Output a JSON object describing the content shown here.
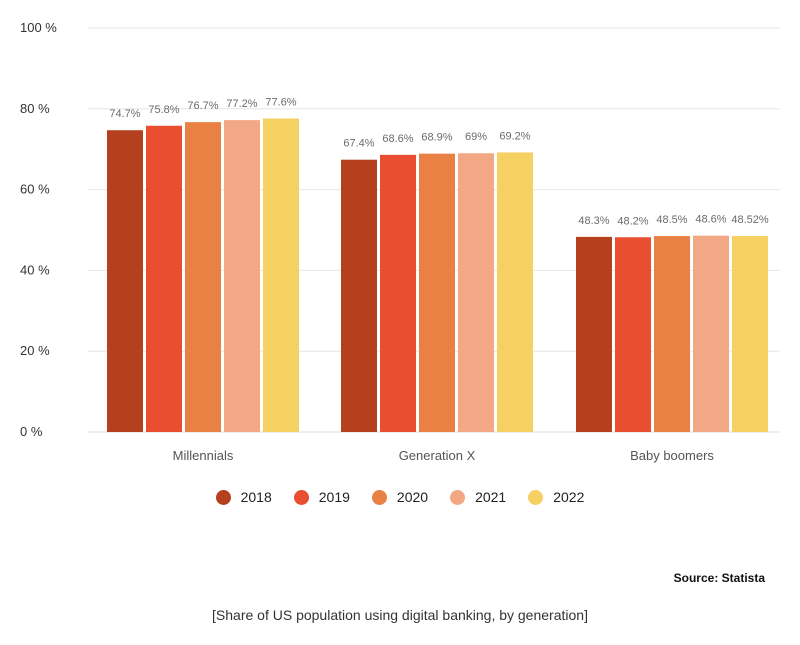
{
  "chart_data": {
    "type": "bar",
    "title": "Share of US population using digital banking, by generation",
    "xlabel": "",
    "ylabel": "",
    "ylim": [
      0,
      100
    ],
    "yticks": [
      0,
      20,
      40,
      60,
      80,
      100
    ],
    "ytick_labels": [
      "0 %",
      "20 %",
      "40 %",
      "60 %",
      "80 %",
      "100 %"
    ],
    "grid": true,
    "legend_position": "bottom-center",
    "categories": [
      "Millennials",
      "Generation X",
      "Baby boomers"
    ],
    "series": [
      {
        "name": "2018",
        "color": "#b5401e",
        "values": [
          74.7,
          67.4,
          48.3
        ],
        "labels": [
          "74.7%",
          "67.4%",
          "48.3%"
        ]
      },
      {
        "name": "2019",
        "color": "#e84e2f",
        "values": [
          75.8,
          68.6,
          48.2
        ],
        "labels": [
          "75.8%",
          "68.6%",
          "48.2%"
        ]
      },
      {
        "name": "2020",
        "color": "#ea8144",
        "values": [
          76.7,
          68.9,
          48.5
        ],
        "labels": [
          "76.7%",
          "68.9%",
          "48.5%"
        ]
      },
      {
        "name": "2021",
        "color": "#f2a885",
        "values": [
          77.2,
          69,
          48.6
        ],
        "labels": [
          "77.2%",
          "69%",
          "48.6%"
        ]
      },
      {
        "name": "2022",
        "color": "#f5d063",
        "values": [
          77.6,
          69.2,
          48.52
        ],
        "labels": [
          "77.6%",
          "69.2%",
          "48.52%"
        ]
      }
    ]
  },
  "footer": {
    "source": "Source: Statista",
    "caption": "[Share of US population using digital banking, by generation]"
  }
}
